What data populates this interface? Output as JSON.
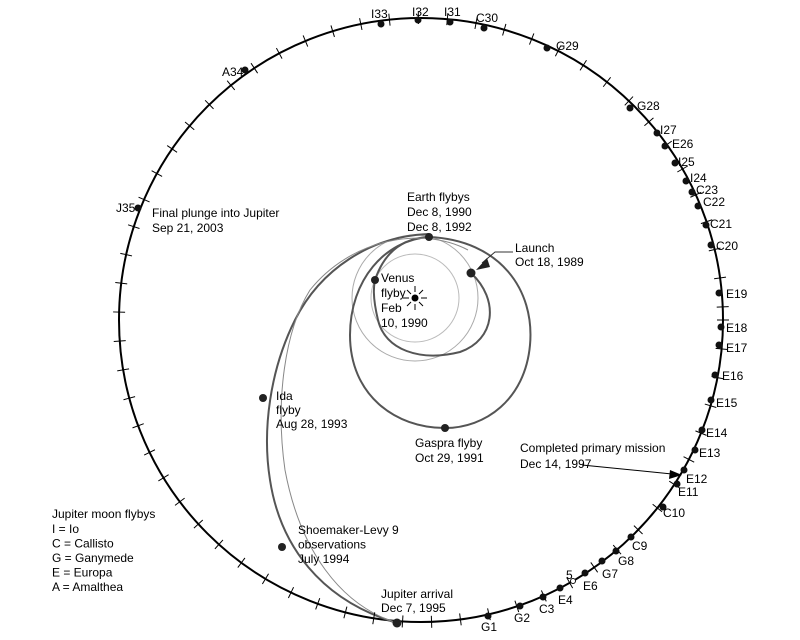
{
  "annotations": {
    "final_plunge": [
      "Final plunge into Jupiter",
      "Sep 21, 2003"
    ],
    "earth_flybys": [
      "Earth flybys",
      "Dec 8, 1990",
      "Dec 8, 1992"
    ],
    "launch": [
      "Launch",
      "Oct 18, 1989"
    ],
    "venus_flyby": [
      "Venus",
      "flyby",
      "Feb",
      "10, 1990"
    ],
    "ida_flyby": [
      "Ida",
      "flyby",
      "Aug 28, 1993"
    ],
    "gaspra_flyby": [
      "Gaspra flyby",
      "Oct 29, 1991"
    ],
    "primary_mission": [
      "Completed primary mission",
      "Dec 14, 1997"
    ],
    "shoemaker_levy": [
      "Shoemaker-Levy 9",
      "observations",
      "July 1994"
    ],
    "jupiter_arrival": [
      "Jupiter arrival",
      "Dec 7, 1995"
    ]
  },
  "legend": {
    "title": "Jupiter moon flybys",
    "items": [
      "I = Io",
      "C = Callisto",
      "G = Ganymede",
      "E = Europa",
      "A = Amalthea"
    ]
  },
  "moon_flybys": [
    "I33",
    "I32",
    "I31",
    "C30",
    "G29",
    "A34",
    "G28",
    "I27",
    "E26",
    "I25",
    "I24",
    "C23",
    "C22",
    "C21",
    "C20",
    "E19",
    "E18",
    "E17",
    "E16",
    "E15",
    "E14",
    "E13",
    "E12",
    "E11",
    "C10",
    "C9",
    "G8",
    "G7",
    "E6",
    "5",
    "E4",
    "C3",
    "G2",
    "G1",
    "J35"
  ],
  "colors": {
    "orbit": "#000000",
    "inner_trajectory": "#555555",
    "planet_orbit": "#aaaaaa"
  }
}
